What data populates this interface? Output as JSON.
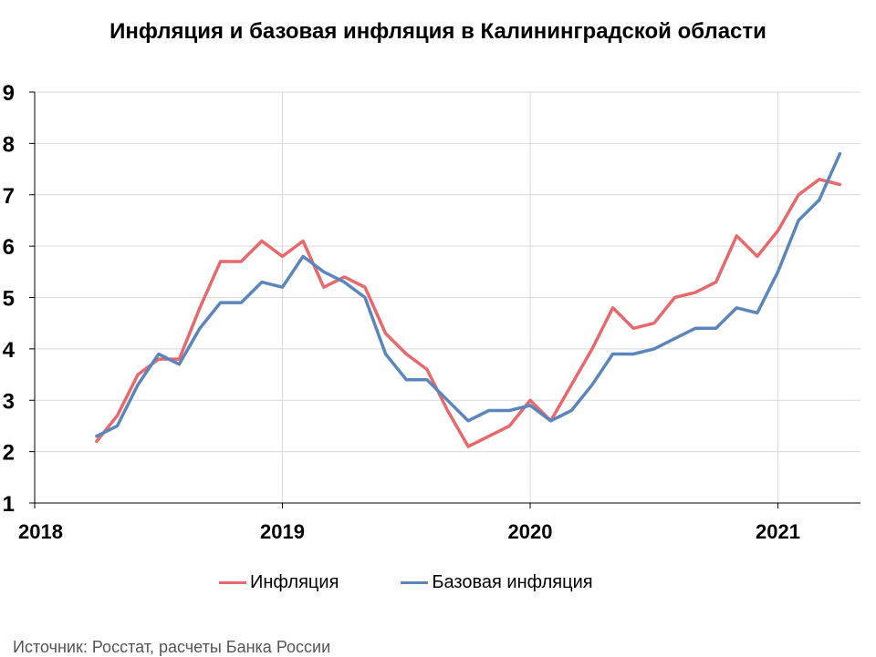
{
  "chart_data": {
    "type": "line",
    "title": "Инфляция и базовая инфляция в Калининградской области",
    "xlabel": "",
    "ylabel": "",
    "x_tick_labels": [
      "2018",
      "2019",
      "2020",
      "2021"
    ],
    "x_ticks": [
      "2018-01",
      "2019-01",
      "2020-01",
      "2021-01"
    ],
    "xlim": [
      "2018-01",
      "2021-05"
    ],
    "ylim": [
      1,
      9
    ],
    "y_ticks": [
      1,
      2,
      3,
      4,
      5,
      6,
      7,
      8,
      9
    ],
    "grid": true,
    "legend_position": "bottom",
    "x": [
      "2018-04",
      "2018-05",
      "2018-06",
      "2018-07",
      "2018-08",
      "2018-09",
      "2018-10",
      "2018-11",
      "2018-12",
      "2019-01",
      "2019-02",
      "2019-03",
      "2019-04",
      "2019-05",
      "2019-06",
      "2019-07",
      "2019-08",
      "2019-09",
      "2019-10",
      "2019-11",
      "2019-12",
      "2020-01",
      "2020-02",
      "2020-03",
      "2020-04",
      "2020-05",
      "2020-06",
      "2020-07",
      "2020-08",
      "2020-09",
      "2020-10",
      "2020-11",
      "2020-12",
      "2021-01",
      "2021-02",
      "2021-03",
      "2021-04"
    ],
    "series": [
      {
        "name": "Инфляция",
        "color": "#e8686b",
        "values": [
          2.2,
          2.7,
          3.5,
          3.8,
          3.8,
          4.8,
          5.7,
          5.7,
          6.1,
          5.8,
          6.1,
          5.2,
          5.4,
          5.2,
          4.3,
          3.9,
          3.6,
          2.8,
          2.1,
          2.3,
          2.5,
          3.0,
          2.6,
          3.3,
          4.0,
          4.8,
          4.4,
          4.5,
          5.0,
          5.1,
          5.3,
          6.2,
          5.8,
          6.3,
          7.0,
          7.3,
          7.2
        ]
      },
      {
        "name": "Базовая инфляция",
        "color": "#5b86bd",
        "values": [
          2.3,
          2.5,
          3.3,
          3.9,
          3.7,
          4.4,
          4.9,
          4.9,
          5.3,
          5.2,
          5.8,
          5.5,
          5.3,
          5.0,
          3.9,
          3.4,
          3.4,
          3.0,
          2.6,
          2.8,
          2.8,
          2.9,
          2.6,
          2.8,
          3.3,
          3.9,
          3.9,
          4.0,
          4.2,
          4.4,
          4.4,
          4.8,
          4.7,
          5.5,
          6.5,
          6.9,
          7.8
        ]
      }
    ]
  },
  "source": "Источник: Росстат, расчеты Банка России"
}
